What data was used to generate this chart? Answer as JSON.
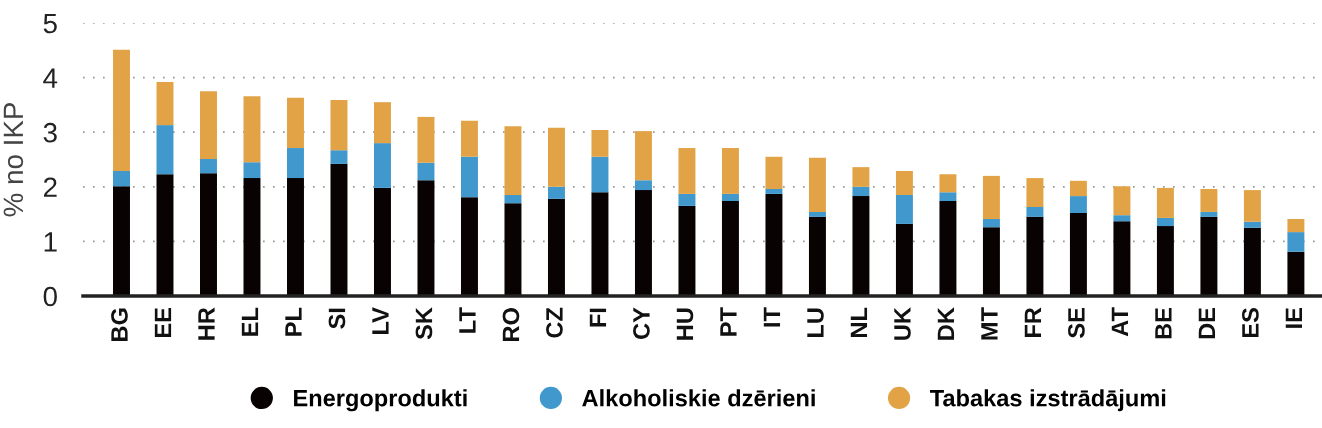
{
  "chart_data": {
    "type": "bar",
    "stacked": true,
    "ylabel": "% no IKP",
    "categories": [
      "BG",
      "EE",
      "HR",
      "EL",
      "PL",
      "SI",
      "LV",
      "SK",
      "LT",
      "RO",
      "CZ",
      "FI",
      "CY",
      "HU",
      "PT",
      "IT",
      "LU",
      "NL",
      "UK",
      "DK",
      "MT",
      "FR",
      "SE",
      "AT",
      "BE",
      "DE",
      "ES",
      "IE"
    ],
    "series": [
      {
        "name": "Energoprodukti",
        "color": "#080202",
        "values": [
          2.01,
          2.23,
          2.25,
          2.16,
          2.16,
          2.42,
          1.98,
          2.12,
          1.81,
          1.7,
          1.78,
          1.9,
          1.94,
          1.65,
          1.74,
          1.87,
          1.45,
          1.83,
          1.32,
          1.74,
          1.26,
          1.45,
          1.52,
          1.37,
          1.28,
          1.45,
          1.25,
          0.81
        ]
      },
      {
        "name": "Alkoholiskie dzērieni",
        "color": "#4198cd",
        "values": [
          0.28,
          0.9,
          0.26,
          0.29,
          0.55,
          0.25,
          0.82,
          0.32,
          0.74,
          0.15,
          0.22,
          0.65,
          0.18,
          0.22,
          0.13,
          0.09,
          0.09,
          0.17,
          0.53,
          0.16,
          0.15,
          0.18,
          0.31,
          0.11,
          0.15,
          0.09,
          0.11,
          0.36
        ]
      },
      {
        "name": "Tabakas izstrādājumi",
        "color": "#e2a347",
        "values": [
          2.22,
          0.79,
          1.24,
          1.21,
          0.92,
          0.92,
          0.75,
          0.84,
          0.66,
          1.26,
          1.08,
          0.49,
          0.9,
          0.84,
          0.84,
          0.59,
          0.99,
          0.36,
          0.44,
          0.33,
          0.79,
          0.53,
          0.28,
          0.53,
          0.55,
          0.42,
          0.58,
          0.24
        ]
      }
    ],
    "ylim": [
      0,
      5
    ],
    "yticks": [
      0,
      1,
      2,
      3,
      4,
      5
    ],
    "grid": "y",
    "legend": "bottom"
  }
}
